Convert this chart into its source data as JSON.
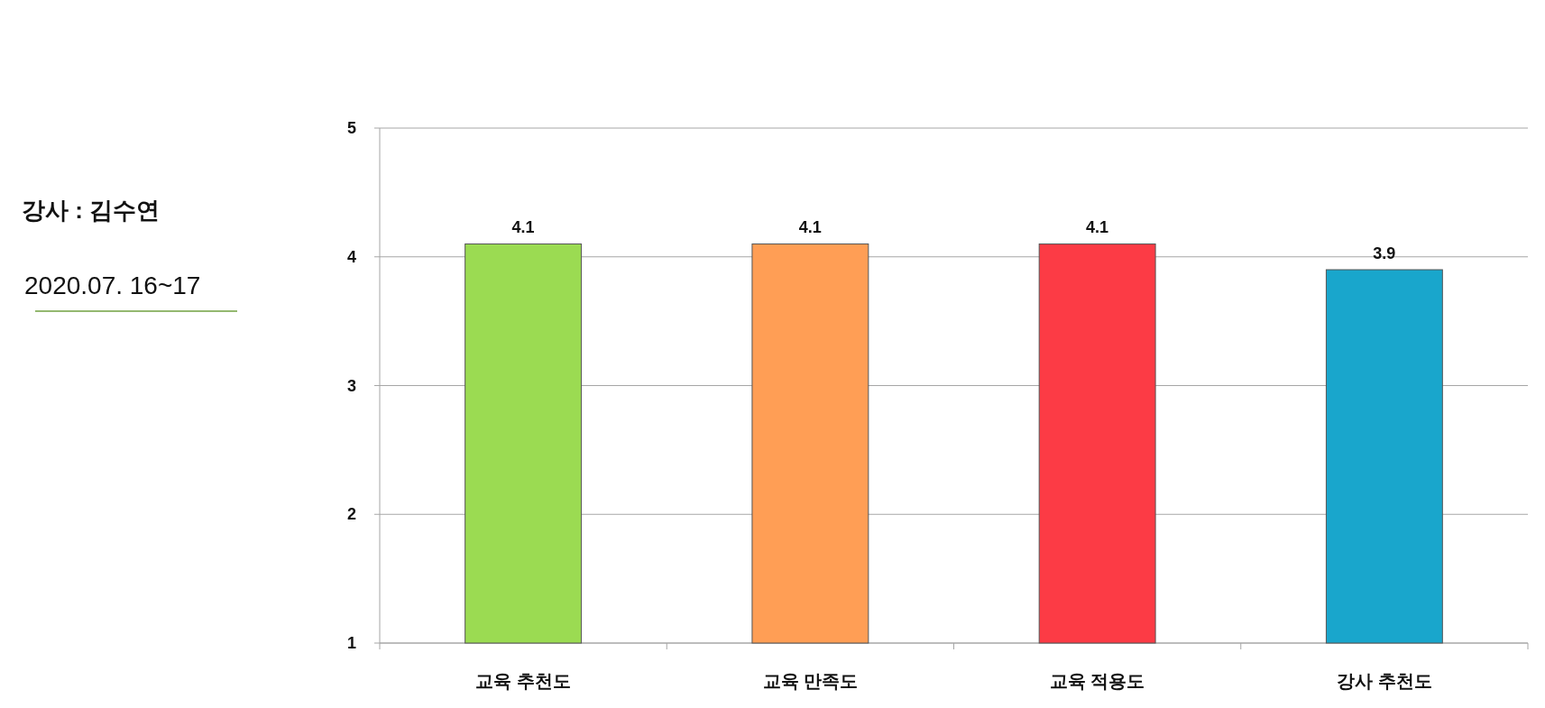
{
  "chart_data": {
    "type": "bar",
    "title": "강사 : 김수연",
    "subtitle": "2020.07. 16~17",
    "categories": [
      "교육 추천도",
      "교육 만족도",
      "교육 적용도",
      "강사 추천도"
    ],
    "values": [
      4.1,
      4.1,
      4.1,
      3.9
    ],
    "colors": [
      "#9bdb52",
      "#ff9e55",
      "#fc3b45",
      "#19a6cc"
    ],
    "ylim": [
      1,
      5
    ],
    "yticks": [
      1,
      2,
      3,
      4,
      5
    ],
    "grid": "y",
    "data_labels": true
  }
}
